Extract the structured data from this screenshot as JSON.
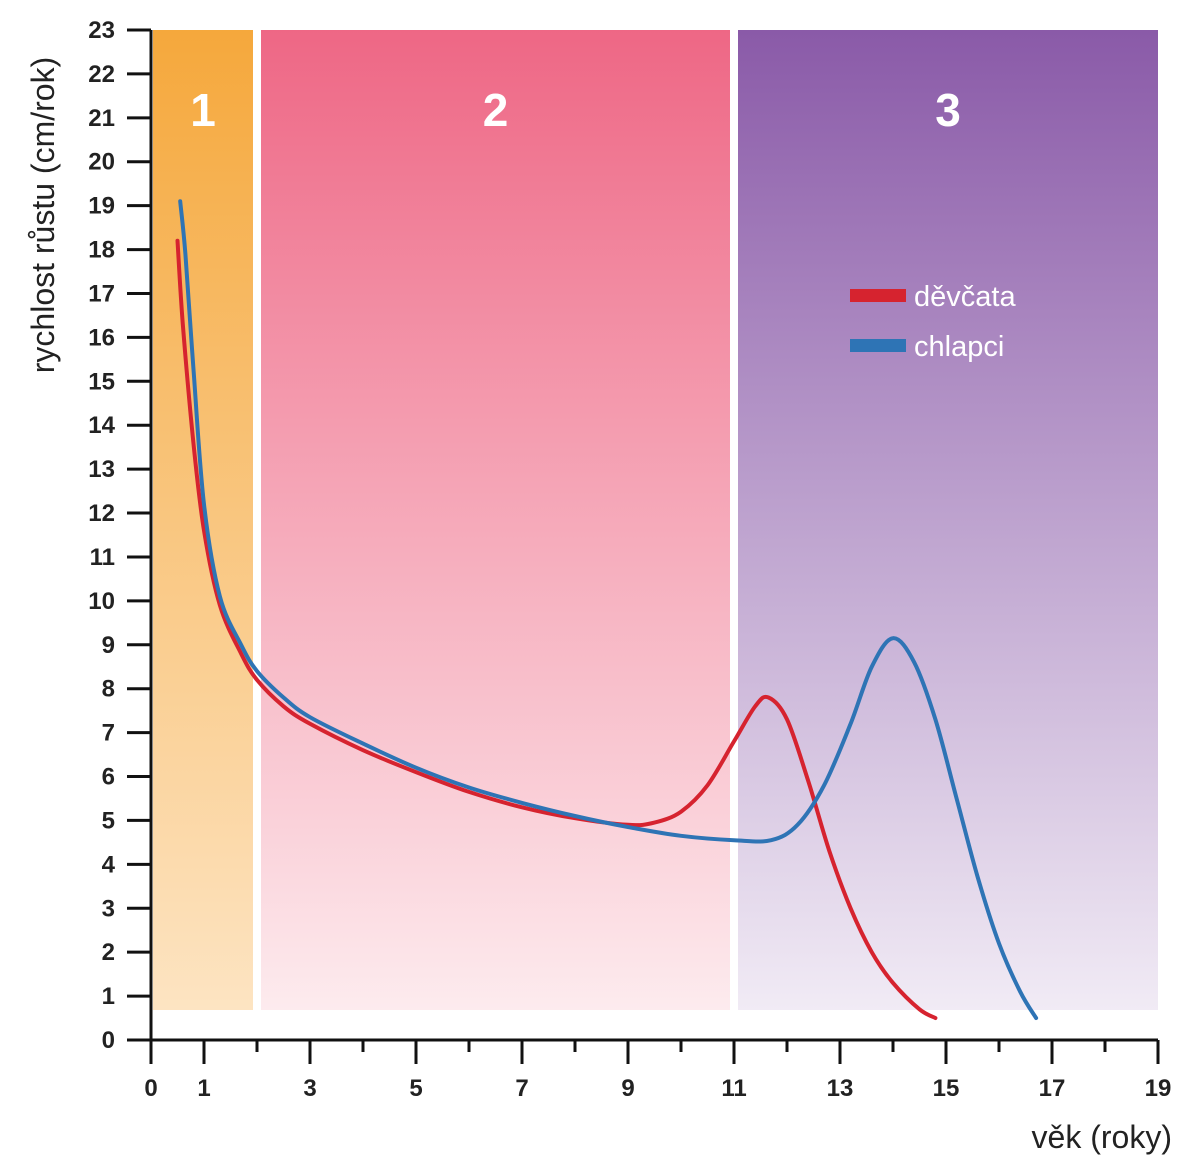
{
  "chart_data": {
    "type": "line",
    "xlabel": "věk (roky)",
    "ylabel": "rychlost růstu (cm/rok)",
    "xlim": [
      0,
      19
    ],
    "ylim": [
      0,
      23
    ],
    "x_ticks": [
      0,
      1,
      3,
      5,
      7,
      9,
      11,
      13,
      15,
      17,
      19
    ],
    "y_ticks": [
      0,
      1,
      2,
      3,
      4,
      5,
      6,
      7,
      8,
      9,
      10,
      11,
      12,
      13,
      14,
      15,
      16,
      17,
      18,
      19,
      20,
      21,
      22,
      23
    ],
    "zones": [
      {
        "label": "1",
        "x_start": 0,
        "x_end": 2,
        "color_top": "#f5a83c",
        "color_bottom": "#fde4c2"
      },
      {
        "label": "2",
        "x_start": 2,
        "x_end": 11,
        "color_top": "#ee6785",
        "color_bottom": "#fdebee"
      },
      {
        "label": "3",
        "x_start": 11,
        "x_end": 19,
        "color_top": "#8a5aa8",
        "color_bottom": "#f1ebf5"
      }
    ],
    "legend_position": "top-right",
    "series": [
      {
        "name": "děvčata",
        "color": "#d6232f",
        "points": [
          [
            0.5,
            18.2
          ],
          [
            0.6,
            16.3
          ],
          [
            0.8,
            13.6
          ],
          [
            1.0,
            11.6
          ],
          [
            1.3,
            9.9
          ],
          [
            1.7,
            8.8
          ],
          [
            2.0,
            8.2
          ],
          [
            2.5,
            7.6
          ],
          [
            3,
            7.2
          ],
          [
            4,
            6.6
          ],
          [
            5,
            6.1
          ],
          [
            6,
            5.65
          ],
          [
            7,
            5.3
          ],
          [
            8,
            5.05
          ],
          [
            9,
            4.9
          ],
          [
            9.5,
            4.95
          ],
          [
            10,
            5.2
          ],
          [
            10.5,
            5.8
          ],
          [
            11,
            6.8
          ],
          [
            11.4,
            7.6
          ],
          [
            11.65,
            7.8
          ],
          [
            12,
            7.3
          ],
          [
            12.4,
            5.9
          ],
          [
            12.8,
            4.3
          ],
          [
            13.2,
            3.0
          ],
          [
            13.6,
            2.0
          ],
          [
            14.0,
            1.3
          ],
          [
            14.5,
            0.7
          ],
          [
            14.8,
            0.5
          ]
        ]
      },
      {
        "name": "chlapci",
        "color": "#2e74b5",
        "points": [
          [
            0.55,
            19.1
          ],
          [
            0.65,
            17.9
          ],
          [
            0.8,
            15.3
          ],
          [
            1.0,
            12.2
          ],
          [
            1.3,
            10.1
          ],
          [
            1.7,
            9.0
          ],
          [
            2.0,
            8.4
          ],
          [
            2.5,
            7.8
          ],
          [
            3,
            7.35
          ],
          [
            4,
            6.75
          ],
          [
            5,
            6.2
          ],
          [
            6,
            5.75
          ],
          [
            7,
            5.4
          ],
          [
            8,
            5.1
          ],
          [
            9,
            4.85
          ],
          [
            10,
            4.65
          ],
          [
            11,
            4.55
          ],
          [
            11.7,
            4.55
          ],
          [
            12.2,
            4.9
          ],
          [
            12.7,
            5.8
          ],
          [
            13.2,
            7.2
          ],
          [
            13.6,
            8.5
          ],
          [
            14.0,
            9.15
          ],
          [
            14.4,
            8.6
          ],
          [
            14.8,
            7.3
          ],
          [
            15.2,
            5.5
          ],
          [
            15.6,
            3.7
          ],
          [
            16.0,
            2.2
          ],
          [
            16.4,
            1.1
          ],
          [
            16.7,
            0.5
          ]
        ]
      }
    ]
  }
}
